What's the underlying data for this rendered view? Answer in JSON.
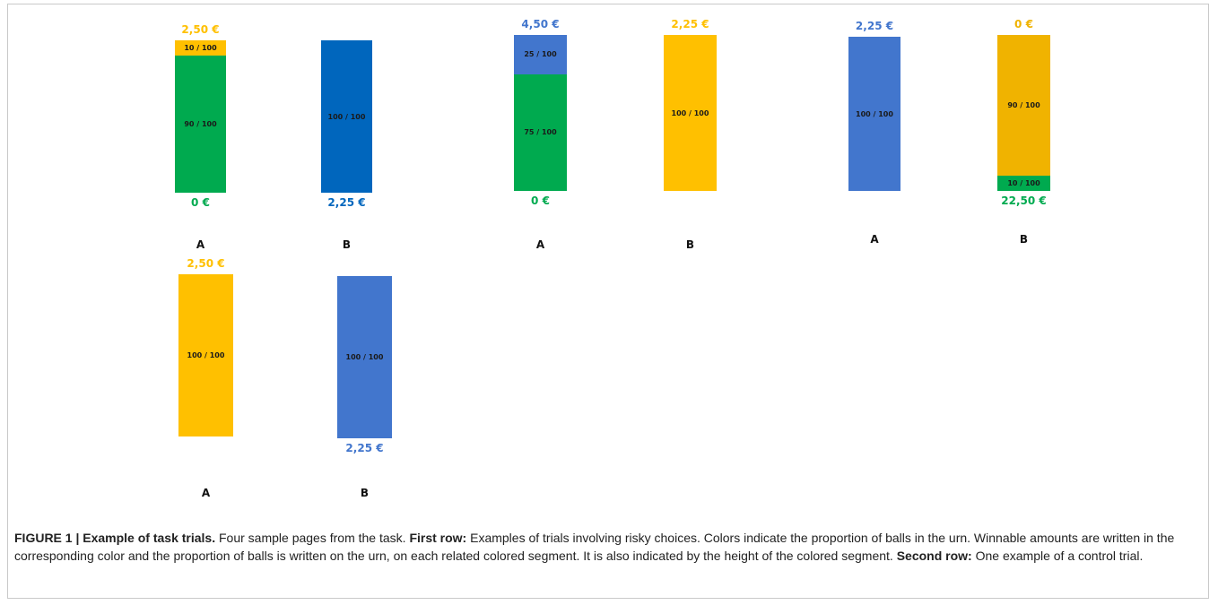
{
  "colors": {
    "green": "#00AA4F",
    "yellow": "#FFC000",
    "gold": "#F0B300",
    "blue_dark": "#0066BD",
    "blue": "#4276CD"
  },
  "trials": [
    {
      "urns": [
        {
          "option": "A",
          "top_amount": "2,50 €",
          "bottom_amount": "0 €",
          "segments": [
            {
              "label": "10 / 100",
              "fraction": 0.1,
              "color": "yellow"
            },
            {
              "label": "90 / 100",
              "fraction": 0.9,
              "color": "green"
            }
          ]
        },
        {
          "option": "B",
          "top_amount": "",
          "bottom_amount": "2,25 €",
          "segments": [
            {
              "label": "100 / 100",
              "fraction": 1.0,
              "color": "blue_dark"
            }
          ]
        }
      ]
    },
    {
      "urns": [
        {
          "option": "A",
          "top_amount": "4,50 €",
          "bottom_amount": "0 €",
          "segments": [
            {
              "label": "25 / 100",
              "fraction": 0.25,
              "color": "blue"
            },
            {
              "label": "75 / 100",
              "fraction": 0.75,
              "color": "green"
            }
          ]
        },
        {
          "option": "B",
          "top_amount": "2,25 €",
          "bottom_amount": "",
          "segments": [
            {
              "label": "100 / 100",
              "fraction": 1.0,
              "color": "yellow"
            }
          ]
        }
      ]
    },
    {
      "urns": [
        {
          "option": "A",
          "top_amount": "2,25 €",
          "bottom_amount": "",
          "segments": [
            {
              "label": "100 / 100",
              "fraction": 1.0,
              "color": "blue"
            }
          ]
        },
        {
          "option": "B",
          "top_amount": "0 €",
          "bottom_amount": "22,50 €",
          "segments": [
            {
              "label": "90 / 100",
              "fraction": 0.9,
              "color": "gold"
            },
            {
              "label": "10 / 100",
              "fraction": 0.1,
              "color": "green"
            }
          ]
        }
      ]
    },
    {
      "urns": [
        {
          "option": "A",
          "top_amount": "2,50 €",
          "bottom_amount": "",
          "segments": [
            {
              "label": "100 / 100",
              "fraction": 1.0,
              "color": "yellow"
            }
          ]
        },
        {
          "option": "B",
          "top_amount": "",
          "bottom_amount": "2,25 €",
          "segments": [
            {
              "label": "100 / 100",
              "fraction": 1.0,
              "color": "blue"
            }
          ]
        }
      ]
    }
  ],
  "caption": {
    "label": "FIGURE 1 | Example of task trials.",
    "intro": " Four sample pages from the task. ",
    "row1_label": "First row:",
    "row1_text": " Examples of trials involving risky choices. Colors indicate the proportion of balls in the urn. Winnable amounts are written in the corresponding color and the proportion of balls is written on the urn, on each related colored segment. It is also indicated by the height of the colored segment. ",
    "row2_label": "Second row:",
    "row2_text": " One example of a control trial."
  }
}
